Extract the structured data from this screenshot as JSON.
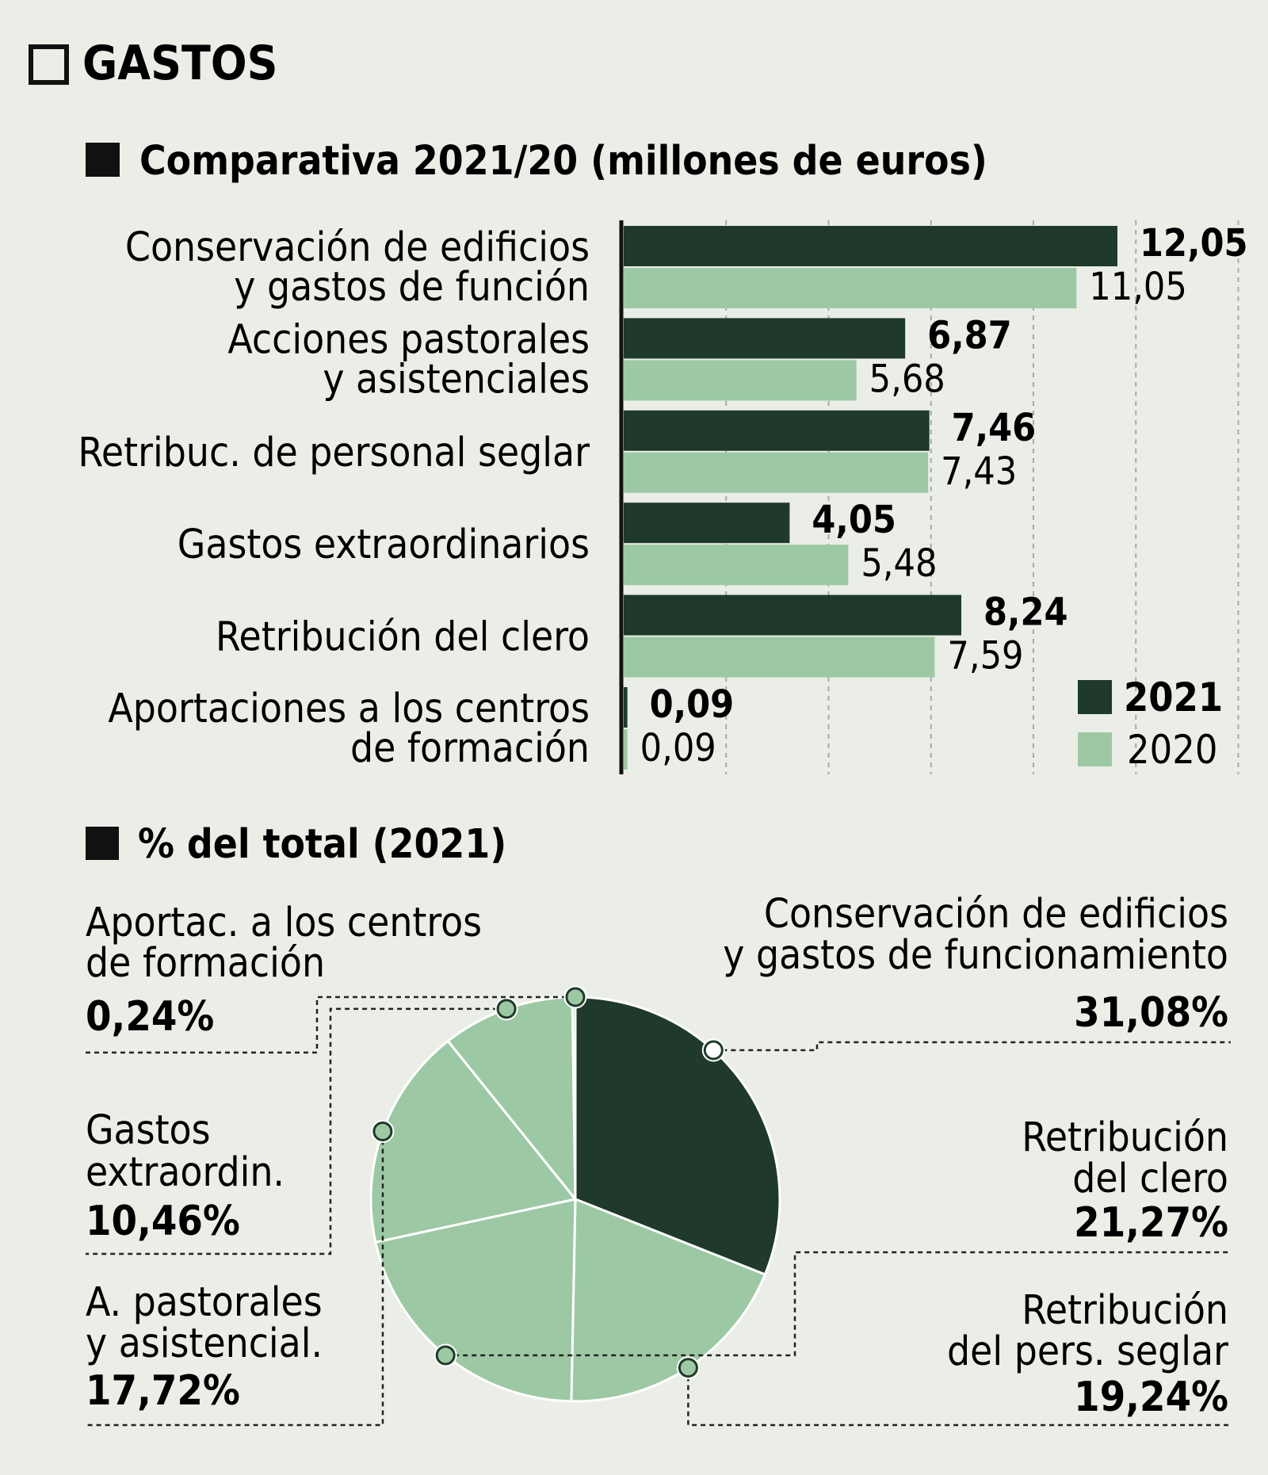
{
  "page": {
    "title": "GASTOS",
    "bar_section_title": "Comparativa 2021/20 (millones de euros)",
    "pie_section_title": "% del total (2021)"
  },
  "colors": {
    "background": "#ebede7",
    "dark_green": "#1f3a2a",
    "light_green": "#9cc9a4",
    "text": "#111111"
  },
  "chart_data": [
    {
      "type": "bar",
      "orientation": "horizontal",
      "title": "Comparativa 2021/20 (millones de euros)",
      "categories": [
        [
          "Conservación de edificios",
          "y gastos de función"
        ],
        [
          "Acciones pastorales",
          "y asistenciales"
        ],
        [
          "Retribuc. de personal seglar"
        ],
        [
          "Gastos extraordinarios"
        ],
        [
          "Retribución del clero"
        ],
        [
          "Aportaciones a los centros",
          "de formación"
        ]
      ],
      "series": [
        {
          "name": "2021",
          "color": "#1f3a2a",
          "values": [
            12.05,
            6.87,
            7.46,
            4.05,
            8.24,
            0.09
          ],
          "labels": [
            "12,05",
            "6,87",
            "7,46",
            "4,05",
            "8,24",
            "0,09"
          ]
        },
        {
          "name": "2020",
          "color": "#9cc9a4",
          "values": [
            11.05,
            5.68,
            7.43,
            5.48,
            7.59,
            0.09
          ],
          "labels": [
            "11,05",
            "5,68",
            "7,43",
            "5,48",
            "7,59",
            "0,09"
          ]
        }
      ],
      "xlim": [
        0,
        15
      ],
      "grid": true,
      "legend_position": "bottom-right"
    },
    {
      "type": "pie",
      "title": "% del total (2021)",
      "slices": [
        {
          "label": [
            "Conservación de edificios",
            "y gastos de funcionamiento"
          ],
          "value": 31.08,
          "pct": "31,08%",
          "color": "#1f3a2a"
        },
        {
          "label": [
            "Retribución",
            "del pers. seglar"
          ],
          "value": 19.24,
          "pct": "19,24%",
          "color": "#9cc9a4"
        },
        {
          "label": [
            "Retribución",
            "del clero"
          ],
          "value": 21.27,
          "pct": "21,27%",
          "color": "#9cc9a4"
        },
        {
          "label": [
            "A. pastorales",
            "y asistencial."
          ],
          "value": 17.72,
          "pct": "17,72%",
          "color": "#9cc9a4"
        },
        {
          "label": [
            "Gastos",
            "extraordin."
          ],
          "value": 10.46,
          "pct": "10,46%",
          "color": "#9cc9a4"
        },
        {
          "label": [
            "Aportac. a los centros",
            "de formación"
          ],
          "value": 0.24,
          "pct": "0,24%",
          "color": "#9cc9a4"
        }
      ]
    }
  ]
}
